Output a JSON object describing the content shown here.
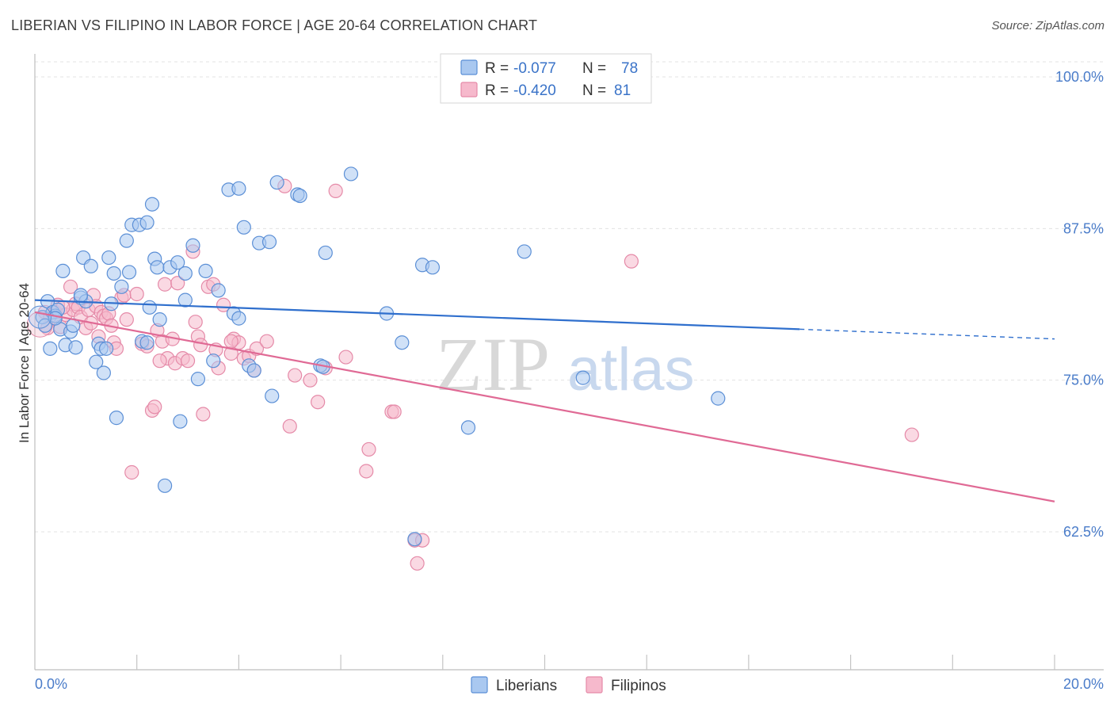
{
  "title": "LIBERIAN VS FILIPINO IN LABOR FORCE | AGE 20-64 CORRELATION CHART",
  "source": "Source: ZipAtlas.com",
  "colors": {
    "liberians_fill": "#a9c8f0",
    "liberians_stroke": "#5b8fd6",
    "liberians_line": "#2f6fcd",
    "filipinos_fill": "#f6b9cc",
    "filipinos_stroke": "#e58aa8",
    "filipinos_line": "#e06a95",
    "tick_text": "#4a7cc9",
    "grid": "#e3e3e3"
  },
  "legend": {
    "row1": {
      "r_label": "R =",
      "r_value": "-0.077",
      "n_label": "N =",
      "n_value": "78"
    },
    "row2": {
      "r_label": "R =",
      "r_value": "-0.420",
      "n_label": "N =",
      "n_value": "81"
    }
  },
  "watermark": {
    "zip": "ZIP",
    "atlas": "atlas"
  },
  "chart_data": {
    "type": "scatter",
    "title": "LIBERIAN VS FILIPINO IN LABOR FORCE | AGE 20-64 CORRELATION CHART",
    "xlabel": "",
    "ylabel": "In Labor Force | Age 20-64",
    "xlim": [
      0.0,
      20.0
    ],
    "ylim": [
      50.5,
      101.0
    ],
    "x_tick_labels": [
      "0.0%",
      "20.0%"
    ],
    "y_ticks": [
      62.5,
      75.0,
      87.5,
      100.0
    ],
    "y_tick_labels": [
      "62.5%",
      "75.0%",
      "87.5%",
      "100.0%"
    ],
    "grid": true,
    "legend_position": "top-center",
    "series": [
      {
        "name": "Liberians",
        "trend": {
          "x0": 0.0,
          "y0": 81.6,
          "x1": 15.0,
          "y1": 79.2,
          "dashed_to": 20.0,
          "dashed_y": 78.4
        },
        "points": [
          [
            0.15,
            80.2
          ],
          [
            0.2,
            79.5
          ],
          [
            0.25,
            81.5
          ],
          [
            0.3,
            77.6
          ],
          [
            0.35,
            80.6
          ],
          [
            0.4,
            80.3
          ],
          [
            0.45,
            80.8
          ],
          [
            0.5,
            79.2
          ],
          [
            0.55,
            84.0
          ],
          [
            0.6,
            77.9
          ],
          [
            0.7,
            79.0
          ],
          [
            0.75,
            79.5
          ],
          [
            0.8,
            77.7
          ],
          [
            0.9,
            81.8
          ],
          [
            0.95,
            85.1
          ],
          [
            1.0,
            81.5
          ],
          [
            1.1,
            84.4
          ],
          [
            1.2,
            76.5
          ],
          [
            1.25,
            78.0
          ],
          [
            1.3,
            77.6
          ],
          [
            1.35,
            75.6
          ],
          [
            1.4,
            77.6
          ],
          [
            1.45,
            85.1
          ],
          [
            1.5,
            81.3
          ],
          [
            1.55,
            83.8
          ],
          [
            1.6,
            71.9
          ],
          [
            1.7,
            82.7
          ],
          [
            1.8,
            86.5
          ],
          [
            1.85,
            83.9
          ],
          [
            1.9,
            87.8
          ],
          [
            2.05,
            87.8
          ],
          [
            2.1,
            78.2
          ],
          [
            2.2,
            78.1
          ],
          [
            2.25,
            81.0
          ],
          [
            2.3,
            89.5
          ],
          [
            2.35,
            85.0
          ],
          [
            2.4,
            84.3
          ],
          [
            2.45,
            80.0
          ],
          [
            2.55,
            66.3
          ],
          [
            2.65,
            84.3
          ],
          [
            2.8,
            84.7
          ],
          [
            2.85,
            71.6
          ],
          [
            2.95,
            81.6
          ],
          [
            2.95,
            83.8
          ],
          [
            3.1,
            86.1
          ],
          [
            3.2,
            75.1
          ],
          [
            3.35,
            84.0
          ],
          [
            3.5,
            76.6
          ],
          [
            3.6,
            82.4
          ],
          [
            3.8,
            90.7
          ],
          [
            3.9,
            80.5
          ],
          [
            4.0,
            80.1
          ],
          [
            4.0,
            90.8
          ],
          [
            4.1,
            87.6
          ],
          [
            4.2,
            76.2
          ],
          [
            4.3,
            75.8
          ],
          [
            4.4,
            86.3
          ],
          [
            4.6,
            86.4
          ],
          [
            4.65,
            73.7
          ],
          [
            4.75,
            91.3
          ],
          [
            5.15,
            90.3
          ],
          [
            5.2,
            90.2
          ],
          [
            5.6,
            76.2
          ],
          [
            5.65,
            76.1
          ],
          [
            5.7,
            85.5
          ],
          [
            6.2,
            92.0
          ],
          [
            6.9,
            80.5
          ],
          [
            7.2,
            78.1
          ],
          [
            7.6,
            84.5
          ],
          [
            7.8,
            84.3
          ],
          [
            8.5,
            71.1
          ],
          [
            7.45,
            61.9
          ],
          [
            9.6,
            85.6
          ],
          [
            10.75,
            75.2
          ],
          [
            13.4,
            73.5
          ],
          [
            0.4,
            80.1
          ],
          [
            0.9,
            82.0
          ],
          [
            2.2,
            88.0
          ]
        ]
      },
      {
        "name": "Filipinos",
        "trend": {
          "x0": 0.0,
          "y0": 80.6,
          "x1": 20.0,
          "y1": 65.0
        },
        "points": [
          [
            0.2,
            80.6
          ],
          [
            0.25,
            79.3
          ],
          [
            0.3,
            80.3
          ],
          [
            0.4,
            80.6
          ],
          [
            0.45,
            81.2
          ],
          [
            0.5,
            79.4
          ],
          [
            0.6,
            80.4
          ],
          [
            0.7,
            82.7
          ],
          [
            0.75,
            80.8
          ],
          [
            0.8,
            81.3
          ],
          [
            0.85,
            81.0
          ],
          [
            0.9,
            80.2
          ],
          [
            1.0,
            79.3
          ],
          [
            1.05,
            80.8
          ],
          [
            1.1,
            79.7
          ],
          [
            1.15,
            82.0
          ],
          [
            1.2,
            81.1
          ],
          [
            1.3,
            80.6
          ],
          [
            1.35,
            80.3
          ],
          [
            1.4,
            80.1
          ],
          [
            1.45,
            80.5
          ],
          [
            1.5,
            79.5
          ],
          [
            1.55,
            78.1
          ],
          [
            1.6,
            77.6
          ],
          [
            1.7,
            81.8
          ],
          [
            1.75,
            82.0
          ],
          [
            1.8,
            80.0
          ],
          [
            1.9,
            67.4
          ],
          [
            2.0,
            82.1
          ],
          [
            2.1,
            78.0
          ],
          [
            2.2,
            77.8
          ],
          [
            2.3,
            72.5
          ],
          [
            2.35,
            72.8
          ],
          [
            2.4,
            79.1
          ],
          [
            2.5,
            78.2
          ],
          [
            2.55,
            82.9
          ],
          [
            2.6,
            76.8
          ],
          [
            2.7,
            78.4
          ],
          [
            2.75,
            76.4
          ],
          [
            2.8,
            83.0
          ],
          [
            2.9,
            76.8
          ],
          [
            3.0,
            76.6
          ],
          [
            3.1,
            85.6
          ],
          [
            3.15,
            79.8
          ],
          [
            3.2,
            78.6
          ],
          [
            3.25,
            77.9
          ],
          [
            3.3,
            72.2
          ],
          [
            3.4,
            82.7
          ],
          [
            3.5,
            82.9
          ],
          [
            3.55,
            77.5
          ],
          [
            3.6,
            76.0
          ],
          [
            3.7,
            81.2
          ],
          [
            3.85,
            77.2
          ],
          [
            3.9,
            78.4
          ],
          [
            4.0,
            78.1
          ],
          [
            4.1,
            76.8
          ],
          [
            4.2,
            77.0
          ],
          [
            4.3,
            75.8
          ],
          [
            4.35,
            77.6
          ],
          [
            4.55,
            78.2
          ],
          [
            4.9,
            91.0
          ],
          [
            5.0,
            71.2
          ],
          [
            5.1,
            75.4
          ],
          [
            5.4,
            75.0
          ],
          [
            5.55,
            73.2
          ],
          [
            5.7,
            76.0
          ],
          [
            5.9,
            90.6
          ],
          [
            6.1,
            76.9
          ],
          [
            6.5,
            67.5
          ],
          [
            6.55,
            69.3
          ],
          [
            7.0,
            72.4
          ],
          [
            7.05,
            72.4
          ],
          [
            7.45,
            61.8
          ],
          [
            7.5,
            59.9
          ],
          [
            7.6,
            61.8
          ],
          [
            11.7,
            84.8
          ],
          [
            17.2,
            70.5
          ],
          [
            2.45,
            76.6
          ],
          [
            0.55,
            81.0
          ],
          [
            1.25,
            78.6
          ],
          [
            3.85,
            78.2
          ]
        ]
      }
    ]
  }
}
